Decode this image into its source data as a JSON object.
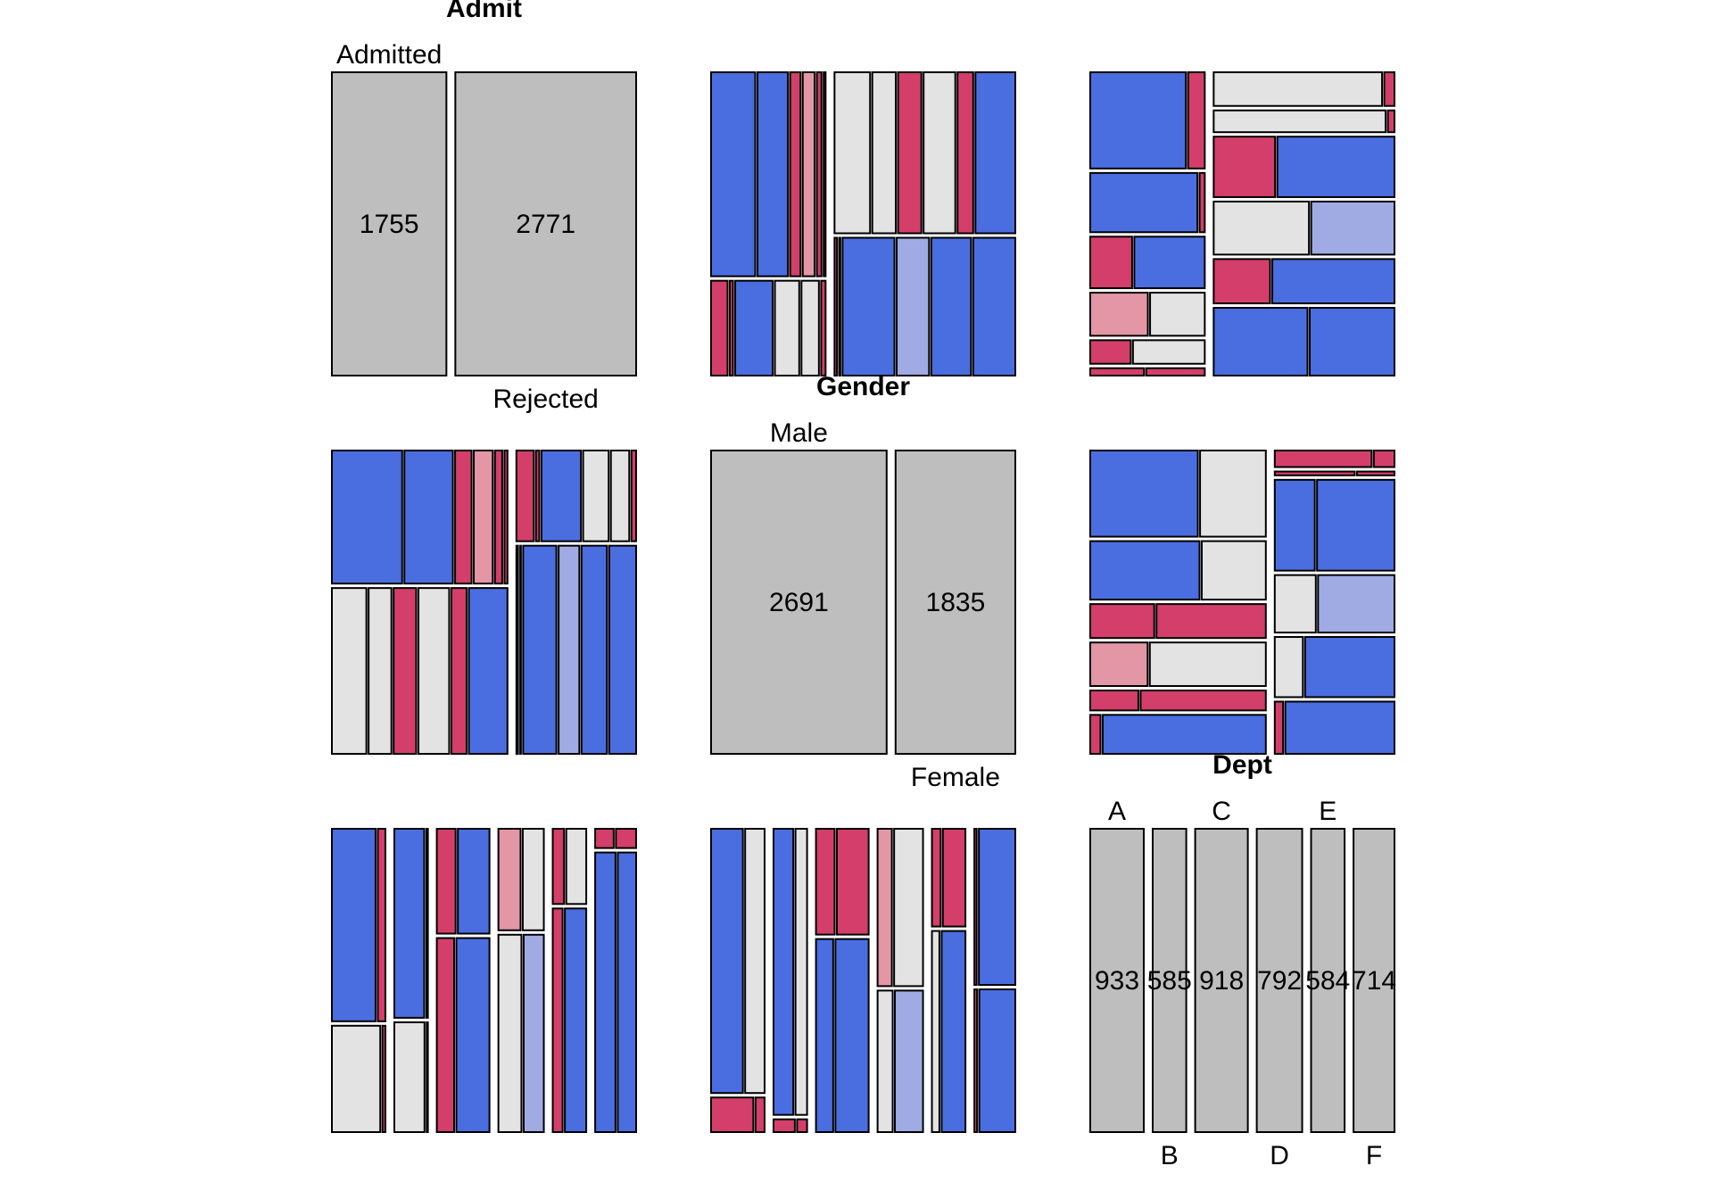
{
  "chart_data": {
    "type": "pairs-mosaic",
    "variables": [
      "Admit",
      "Gender",
      "Dept"
    ],
    "levels": {
      "Admit": [
        "Admitted",
        "Rejected"
      ],
      "Gender": [
        "Male",
        "Female"
      ],
      "Dept": [
        "A",
        "B",
        "C",
        "D",
        "E",
        "F"
      ]
    },
    "diagonal": [
      {
        "title": "Admit",
        "categories": [
          "Admitted",
          "Rejected"
        ],
        "values": [
          1755,
          2771
        ]
      },
      {
        "title": "Gender",
        "categories": [
          "Male",
          "Female"
        ],
        "values": [
          2691,
          1835
        ]
      },
      {
        "title": "Dept",
        "categories": [
          "A",
          "B",
          "C",
          "D",
          "E",
          "F"
        ],
        "values": [
          933,
          585,
          918,
          792,
          584,
          714
        ]
      }
    ],
    "counts": {
      "Admitted": {
        "Male": {
          "A": 512,
          "B": 353,
          "C": 120,
          "D": 138,
          "E": 53,
          "F": 22
        },
        "Female": {
          "A": 89,
          "B": 17,
          "C": 202,
          "D": 131,
          "E": 94,
          "F": 24
        }
      },
      "Rejected": {
        "Male": {
          "A": 313,
          "B": 207,
          "C": 205,
          "D": 279,
          "E": 138,
          "F": 351
        },
        "Female": {
          "A": 19,
          "B": 8,
          "C": 391,
          "D": 244,
          "E": 299,
          "F": 317
        }
      }
    },
    "residual_colors": {
      "strong_positive": "#4a6ee0",
      "moderate_positive": "#a0abe3",
      "neutral": "#e3e3e3",
      "moderate_negative": "#e396a6",
      "strong_negative": "#d33f6a",
      "diagonal_fill": "#bebebe"
    }
  }
}
